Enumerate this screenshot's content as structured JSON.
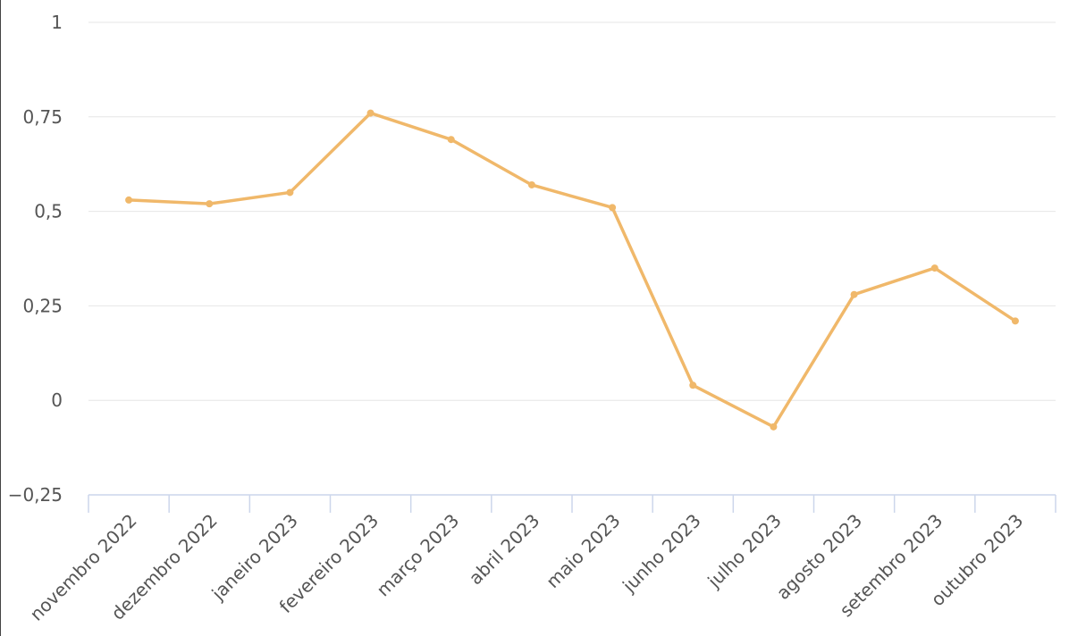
{
  "chart_data": {
    "type": "line",
    "title": "",
    "xlabel": "",
    "ylabel": "",
    "categories": [
      "novembro 2022",
      "dezembro 2022",
      "janeiro 2023",
      "fevereiro 2023",
      "março 2023",
      "abril 2023",
      "maio 2023",
      "junho 2023",
      "julho 2023",
      "agosto 2023",
      "setembro 2023",
      "outubro 2023"
    ],
    "series": [
      {
        "values": [
          0.53,
          0.52,
          0.55,
          0.76,
          0.69,
          0.57,
          0.51,
          0.04,
          -0.07,
          0.28,
          0.35,
          0.21
        ],
        "color": "#f0b86a"
      }
    ],
    "ylim": [
      -0.25,
      1
    ],
    "yticks": [
      {
        "value": -0.25,
        "label": "−0,25"
      },
      {
        "value": 0,
        "label": "0"
      },
      {
        "value": 0.25,
        "label": "0,25"
      },
      {
        "value": 0.5,
        "label": "0,5"
      },
      {
        "value": 0.75,
        "label": "0,75"
      },
      {
        "value": 1,
        "label": "1"
      }
    ],
    "grid": true,
    "legend": "none",
    "colors": {
      "grid": "#e6e6e6",
      "axis": "#ccd6eb",
      "text": "#555555"
    }
  }
}
